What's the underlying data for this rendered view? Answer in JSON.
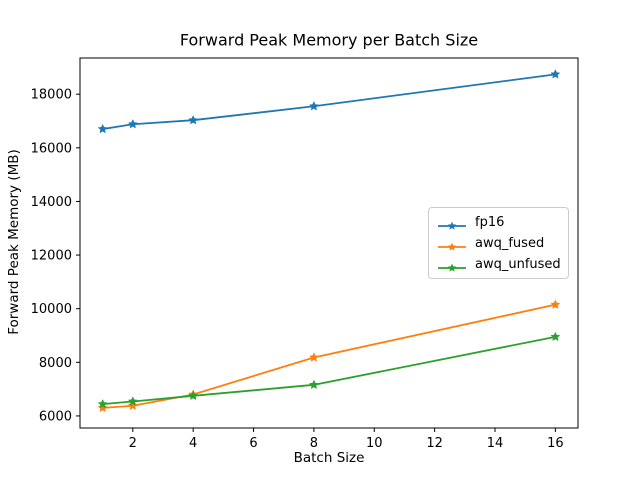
{
  "figure": {
    "title": "Forward Peak Memory per Batch Size",
    "xlabel": "Batch Size",
    "ylabel": "Forward Peak Memory (MB)"
  },
  "chart_data": {
    "type": "line",
    "title": "Forward Peak Memory per Batch Size",
    "xlabel": "Batch Size",
    "ylabel": "Forward Peak Memory (MB)",
    "x": [
      1,
      2,
      4,
      8,
      16
    ],
    "series": [
      {
        "name": "fp16",
        "color": "#1f77b4",
        "marker": "star",
        "values": [
          16700,
          16880,
          17030,
          17550,
          18740
        ]
      },
      {
        "name": "awq_fused",
        "color": "#ff7f0e",
        "marker": "star",
        "values": [
          6300,
          6380,
          6800,
          8180,
          10150
        ]
      },
      {
        "name": "awq_unfused",
        "color": "#2ca02c",
        "marker": "star",
        "values": [
          6440,
          6540,
          6750,
          7160,
          8950
        ]
      }
    ],
    "xticks": [
      2,
      4,
      6,
      8,
      10,
      12,
      14,
      16
    ],
    "yticks": [
      6000,
      8000,
      10000,
      12000,
      14000,
      16000,
      18000
    ],
    "xlim": [
      0.25,
      16.75
    ],
    "ylim": [
      5550,
      19350
    ],
    "grid": false,
    "legend_position": "center right",
    "spine_color": "#000000",
    "background_color": "#ffffff"
  }
}
